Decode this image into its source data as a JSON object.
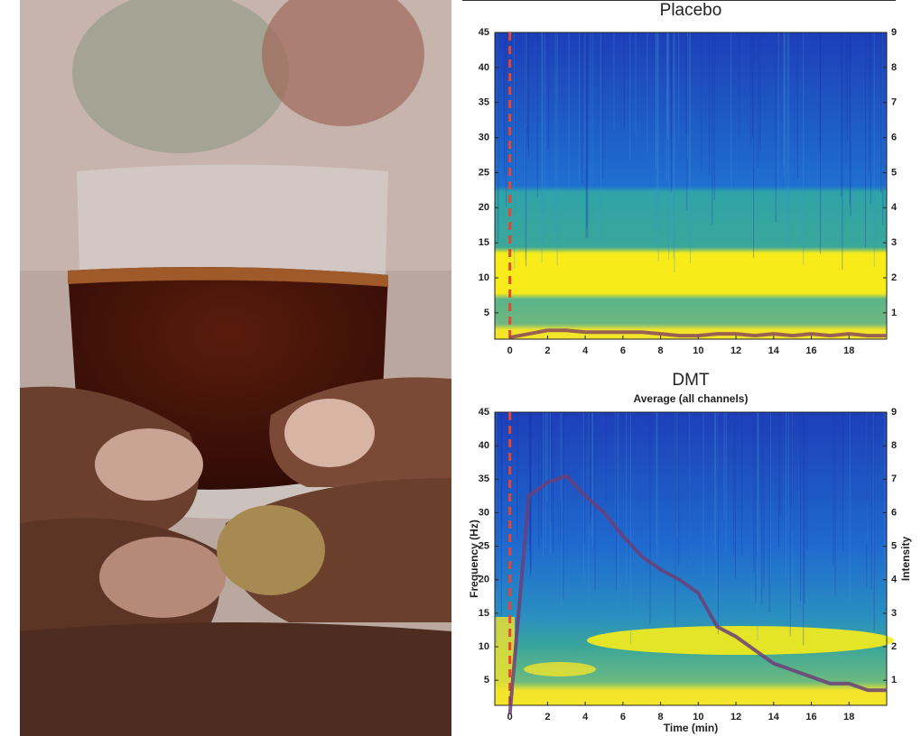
{
  "chart_data": [
    {
      "type": "line",
      "title": "Placebo",
      "x": [
        0,
        1,
        2,
        3,
        4,
        5,
        6,
        7,
        8,
        9,
        10,
        11,
        12,
        13,
        14,
        15,
        16,
        17,
        18,
        19,
        20
      ],
      "series": [
        {
          "color": "#8a4a5a",
          "axis": "y2",
          "values": [
            0.3,
            0.4,
            0.5,
            0.5,
            0.45,
            0.45,
            0.45,
            0.45,
            0.4,
            0.35,
            0.35,
            0.4,
            0.4,
            0.35,
            0.4,
            0.35,
            0.4,
            0.35,
            0.4,
            0.35,
            0.35
          ]
        }
      ],
      "xlim": [
        -0.8,
        20
      ],
      "xticks": [
        0,
        2,
        4,
        6,
        8,
        10,
        12,
        14,
        16,
        18
      ],
      "ylim": [
        1.25,
        45
      ],
      "yticks": [
        5,
        10,
        15,
        20,
        25,
        30,
        35,
        40,
        45
      ],
      "y2lim": [
        0.25,
        9
      ],
      "y2ticks": [
        1,
        2,
        3,
        4,
        5,
        6,
        7,
        8,
        9
      ],
      "vline": 0,
      "vline_color": "#e8452c"
    },
    {
      "type": "line",
      "title": "DMT",
      "subtitle": "Average (all channels)",
      "xlabel": "Time (min)",
      "ylabel": "Frequency (Hz)",
      "y2label": "Intensity",
      "x": [
        0,
        1,
        2,
        3,
        4,
        5,
        6,
        7,
        8,
        9,
        10,
        11,
        12,
        13,
        14,
        15,
        16,
        17,
        18,
        19,
        20
      ],
      "series": [
        {
          "color": "#6b3f78",
          "axis": "y2",
          "values": [
            0,
            6.5,
            6.9,
            7.1,
            6.5,
            6.0,
            5.3,
            4.7,
            4.3,
            4.0,
            3.6,
            2.6,
            2.3,
            1.9,
            1.5,
            1.3,
            1.1,
            0.9,
            0.9,
            0.7,
            0.7
          ]
        }
      ],
      "xlim": [
        -0.8,
        20
      ],
      "xticks": [
        0,
        2,
        4,
        6,
        8,
        10,
        12,
        14,
        16,
        18
      ],
      "ylim": [
        1.25,
        45
      ],
      "yticks": [
        5,
        10,
        15,
        20,
        25,
        30,
        35,
        40,
        45
      ],
      "y2lim": [
        0.25,
        9
      ],
      "y2ticks": [
        1,
        2,
        3,
        4,
        5,
        6,
        7,
        8,
        9
      ],
      "vline": 0,
      "vline_color": "#e8452c"
    }
  ]
}
